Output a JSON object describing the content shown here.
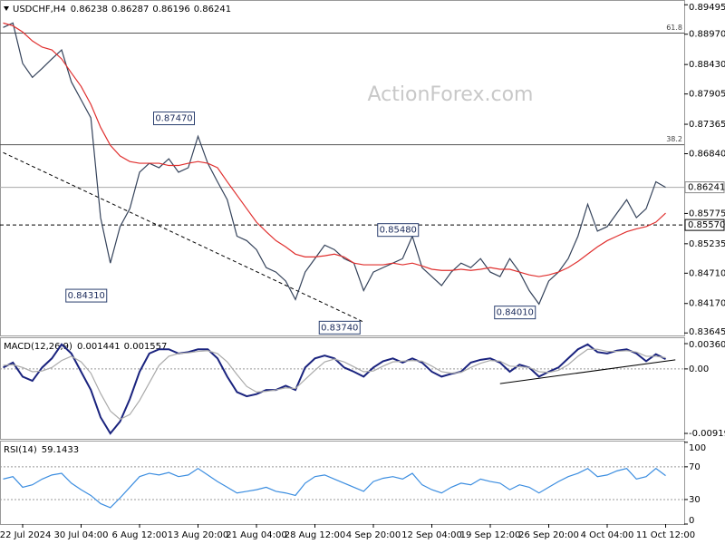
{
  "chart_data": [
    {
      "type": "line",
      "header": "USDCHF,H4",
      "readout": [
        0.86238,
        0.86287,
        0.86196,
        0.86241
      ],
      "watermark": "ActionForex.com",
      "ylim": [
        0.836,
        0.8958
      ],
      "yticks": [
        0.89495,
        {
          "value": 0.8897,
          "label": "0.88970"
        },
        {
          "value": 0.8843,
          "label": "0.88430"
        },
        0.87905,
        0.87365,
        {
          "value": 0.8684,
          "label": "0.86840"
        },
        0.85775,
        0.85235,
        {
          "value": 0.8471,
          "label": "0.84710"
        },
        {
          "value": 0.8417,
          "label": "0.84170"
        },
        0.83645
      ],
      "series": [
        {
          "color": "#34425a",
          "values": [
            0.8909,
            0.8917,
            0.8845,
            0.882,
            0.8836,
            0.8853,
            0.8869,
            0.8812,
            0.878,
            0.8748,
            0.857,
            0.8489,
            0.8554,
            0.8586,
            0.8651,
            0.8667,
            0.8659,
            0.8675,
            0.8651,
            0.8659,
            0.8715,
            0.8667,
            0.8634,
            0.8602,
            0.8537,
            0.8529,
            0.8513,
            0.8481,
            0.8473,
            0.8457,
            0.8424,
            0.8473,
            0.8497,
            0.8521,
            0.8513,
            0.8497,
            0.8489,
            0.844,
            0.8473,
            0.8481,
            0.8489,
            0.8497,
            0.8537,
            0.8481,
            0.8465,
            0.8449,
            0.8473,
            0.8489,
            0.8481,
            0.8497,
            0.8473,
            0.8465,
            0.8497,
            0.8473,
            0.844,
            0.8416,
            0.8457,
            0.8473,
            0.8497,
            0.8537,
            0.8594,
            0.8546,
            0.8554,
            0.8578,
            0.8602,
            0.857,
            0.8586,
            0.8634,
            0.8624
          ]
        },
        {
          "color": "#e0302f",
          "values": [
            0.8917,
            0.8912,
            0.8901,
            0.8885,
            0.8874,
            0.8869,
            0.8853,
            0.8828,
            0.8804,
            0.8772,
            0.8731,
            0.8699,
            0.868,
            0.867,
            0.8667,
            0.8667,
            0.8667,
            0.8663,
            0.8663,
            0.8667,
            0.867,
            0.8667,
            0.8659,
            0.8634,
            0.861,
            0.8586,
            0.8562,
            0.8545,
            0.8529,
            0.8518,
            0.8505,
            0.85,
            0.85,
            0.8502,
            0.8505,
            0.85,
            0.8489,
            0.8486,
            0.8486,
            0.8486,
            0.8489,
            0.8486,
            0.8489,
            0.8484,
            0.8478,
            0.8476,
            0.8476,
            0.8478,
            0.8476,
            0.8478,
            0.8481,
            0.8478,
            0.8478,
            0.8473,
            0.8468,
            0.8465,
            0.8468,
            0.8473,
            0.8481,
            0.8492,
            0.8505,
            0.8518,
            0.8529,
            0.8537,
            0.8545,
            0.855,
            0.8554,
            0.8562,
            0.8578
          ]
        }
      ],
      "current": 0.86241,
      "hlines": [
        {
          "value": 0.8557,
          "label": "0.85570",
          "style": "dashed"
        }
      ],
      "levels": [
        {
          "label": "61.8",
          "value": 0.8899
        },
        {
          "label": "38.2",
          "value": 0.87
        }
      ],
      "annotations": [
        {
          "label": "0.87470",
          "value": 0.8747,
          "index": 20
        },
        {
          "label": "0.84310",
          "value": 0.8431,
          "index": 11
        },
        {
          "label": "0.83740",
          "value": 0.8374,
          "index": 37
        },
        {
          "label": "0.85480",
          "value": 0.8548,
          "index": 43
        },
        {
          "label": "0.84010",
          "value": 0.8401,
          "index": 55
        }
      ],
      "trendlines": [
        {
          "start": [
            0,
            0.8686
          ],
          "end": [
            37,
            0.8384
          ],
          "style": "dashed"
        }
      ]
    },
    {
      "type": "line",
      "header": "MACD(12,26,9)",
      "readout": [
        0.001441,
        0.001557
      ],
      "ylim": [
        -0.00997,
        0.00451
      ],
      "yticks": [
        0.003603,
        {
          "value": 0,
          "label": "0.00"
        },
        -0.009198
      ],
      "series": [
        {
          "color": "#1a237e",
          "values": [
            0.0002,
            0.0009,
            -0.0011,
            -0.0017,
            0.0002,
            0.0015,
            0.0035,
            0.0022,
            -0.0004,
            -0.003,
            -0.0069,
            -0.0092,
            -0.0075,
            -0.0043,
            -0.0004,
            0.0022,
            0.0028,
            0.0028,
            0.0022,
            0.0024,
            0.0028,
            0.0028,
            0.0015,
            -0.0011,
            -0.0033,
            -0.0039,
            -0.0036,
            -0.003,
            -0.003,
            -0.0024,
            -0.003,
            0.0002,
            0.0015,
            0.0019,
            0.0015,
            0.0002,
            -0.0004,
            -0.0011,
            0.0002,
            0.0011,
            0.0015,
            0.0009,
            0.0015,
            0.0009,
            -0.0004,
            -0.0011,
            -0.0007,
            -0.0004,
            0.0009,
            0.0013,
            0.0015,
            0.0009,
            -0.0004,
            0.0006,
            0.0002,
            -0.0011,
            -0.0004,
            0.0002,
            0.0015,
            0.0028,
            0.0035,
            0.0024,
            0.0022,
            0.0026,
            0.0028,
            0.0022,
            0.0011,
            0.0021,
            0.0014
          ]
        },
        {
          "color": "#aaaaaa",
          "values": [
            0.0005,
            0.0006,
            0.0002,
            -0.0004,
            -0.0003,
            0.0002,
            0.0012,
            0.0018,
            0.001,
            -0.0006,
            -0.0035,
            -0.006,
            -0.0072,
            -0.0065,
            -0.0045,
            -0.002,
            0.0005,
            0.0018,
            0.0022,
            0.0023,
            0.0025,
            0.0026,
            0.0022,
            0.001,
            -0.0008,
            -0.0025,
            -0.0033,
            -0.0032,
            -0.003,
            -0.0027,
            -0.0028,
            -0.0015,
            -0.0002,
            0.001,
            0.0014,
            0.001,
            0.0003,
            -0.0004,
            -0.0003,
            0.0004,
            0.001,
            0.0011,
            0.0012,
            0.0011,
            0.0004,
            -0.0004,
            -0.0006,
            -0.0005,
            0.0002,
            0.0008,
            0.0012,
            0.0011,
            0.0004,
            0.0003,
            0.0002,
            -0.0004,
            -0.0005,
            -0.0002,
            0.0006,
            0.0018,
            0.0028,
            0.0028,
            0.0025,
            0.0025,
            0.0026,
            0.0024,
            0.0018,
            0.0018,
            0.0016
          ]
        }
      ],
      "hlines": [
        {
          "value": 0,
          "style": "dotted"
        }
      ],
      "trendlines": [
        {
          "start": [
            51,
            -0.0021
          ],
          "end": [
            69,
            0.0013
          ],
          "style": "solid"
        }
      ]
    },
    {
      "type": "line",
      "header": "RSI(14)",
      "readout": [
        59.1433
      ],
      "ylim": [
        0,
        102
      ],
      "yticks": [
        100,
        70,
        30,
        0
      ],
      "series": [
        {
          "color": "#3b8de0",
          "values": [
            55,
            58,
            45,
            48,
            55,
            60,
            62,
            50,
            42,
            35,
            25,
            20,
            32,
            45,
            58,
            62,
            60,
            63,
            58,
            60,
            68,
            60,
            52,
            45,
            38,
            40,
            42,
            45,
            40,
            38,
            35,
            50,
            58,
            60,
            55,
            50,
            45,
            40,
            52,
            56,
            58,
            55,
            62,
            48,
            42,
            38,
            45,
            50,
            48,
            55,
            52,
            50,
            42,
            48,
            45,
            38,
            45,
            52,
            58,
            62,
            68,
            58,
            60,
            65,
            68,
            55,
            58,
            68,
            59.1433
          ]
        }
      ],
      "hlines": [
        {
          "value": 70,
          "style": "dotted"
        },
        {
          "value": 30,
          "style": "dotted"
        }
      ],
      "categories": [
        null,
        null,
        "22 Jul 2024",
        null,
        null,
        null,
        null,
        null,
        "30 Jul 04:00",
        null,
        null,
        null,
        null,
        null,
        "6 Aug 12:00",
        null,
        null,
        null,
        null,
        null,
        "13 Aug 20:00",
        null,
        null,
        null,
        null,
        null,
        "21 Aug 04:00",
        null,
        null,
        null,
        null,
        null,
        "28 Aug 12:00",
        null,
        null,
        null,
        null,
        null,
        "4 Sep 20:00",
        null,
        null,
        null,
        null,
        null,
        "12 Sep 04:00",
        null,
        null,
        null,
        null,
        null,
        "19 Sep 12:00",
        null,
        null,
        null,
        null,
        null,
        "26 Sep 20:00",
        null,
        null,
        null,
        null,
        null,
        "4 Oct 04:00",
        null,
        null,
        null,
        null,
        null,
        "11 Oct 12:00"
      ]
    }
  ]
}
